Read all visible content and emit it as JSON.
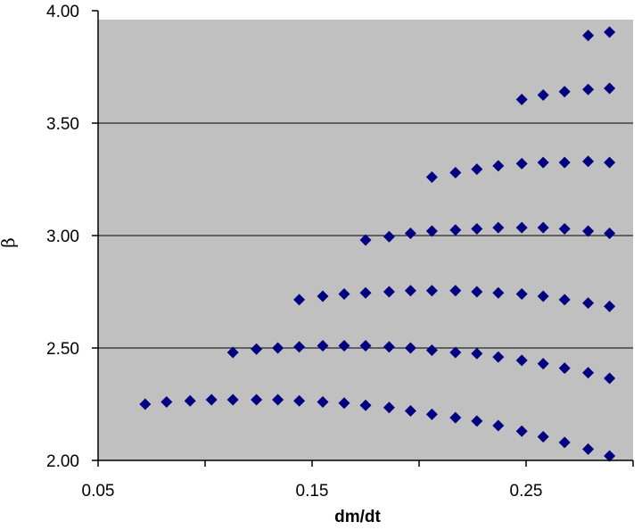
{
  "chart_data": {
    "type": "scatter",
    "title": "",
    "xlabel": "dm/dt",
    "ylabel": "β",
    "xlim": [
      0.05,
      0.3
    ],
    "ylim": [
      2.0,
      4.0
    ],
    "xticks": [
      0.05,
      0.15,
      0.25
    ],
    "xtick_labels": [
      "0.05",
      "0.15",
      "0.25"
    ],
    "yticks": [
      2.0,
      2.5,
      3.0,
      3.5,
      4.0
    ],
    "ytick_labels": [
      "2.00",
      "2.50",
      "3.00",
      "3.50",
      "4.00"
    ],
    "grid": "horizontal",
    "legend": "none",
    "plot_background": "#c0c0c0",
    "marker_color": "#000080",
    "marker": "diamond",
    "series": [
      {
        "x": [
          0.072,
          0.082,
          0.093,
          0.103,
          0.113,
          0.124,
          0.134,
          0.144,
          0.155,
          0.165,
          0.175,
          0.186,
          0.196,
          0.206,
          0.217,
          0.227,
          0.237,
          0.248,
          0.258,
          0.268,
          0.279,
          0.289
        ],
        "y": [
          2.25,
          2.26,
          2.265,
          2.27,
          2.27,
          2.27,
          2.27,
          2.265,
          2.26,
          2.255,
          2.245,
          2.235,
          2.22,
          2.205,
          2.19,
          2.175,
          2.155,
          2.13,
          2.105,
          2.08,
          2.05,
          2.02
        ]
      },
      {
        "x": [
          0.113,
          0.124,
          0.134,
          0.144,
          0.155,
          0.165,
          0.175,
          0.186,
          0.196,
          0.206,
          0.217,
          0.227,
          0.237,
          0.248,
          0.258,
          0.268,
          0.279,
          0.289
        ],
        "y": [
          2.48,
          2.495,
          2.5,
          2.505,
          2.51,
          2.51,
          2.51,
          2.505,
          2.5,
          2.49,
          2.48,
          2.475,
          2.46,
          2.445,
          2.43,
          2.41,
          2.39,
          2.365
        ]
      },
      {
        "x": [
          0.144,
          0.155,
          0.165,
          0.175,
          0.186,
          0.196,
          0.206,
          0.217,
          0.227,
          0.237,
          0.248,
          0.258,
          0.268,
          0.279,
          0.289
        ],
        "y": [
          2.715,
          2.73,
          2.74,
          2.745,
          2.75,
          2.755,
          2.755,
          2.755,
          2.75,
          2.745,
          2.74,
          2.73,
          2.715,
          2.7,
          2.685
        ]
      },
      {
        "x": [
          0.175,
          0.186,
          0.196,
          0.206,
          0.217,
          0.227,
          0.237,
          0.248,
          0.258,
          0.268,
          0.279,
          0.289
        ],
        "y": [
          2.98,
          2.995,
          3.01,
          3.02,
          3.025,
          3.03,
          3.035,
          3.035,
          3.035,
          3.03,
          3.02,
          3.01
        ]
      },
      {
        "x": [
          0.206,
          0.217,
          0.227,
          0.237,
          0.248,
          0.258,
          0.268,
          0.279,
          0.289
        ],
        "y": [
          3.26,
          3.28,
          3.295,
          3.31,
          3.32,
          3.325,
          3.325,
          3.33,
          3.325
        ]
      },
      {
        "x": [
          0.248,
          0.258,
          0.268,
          0.279,
          0.289
        ],
        "y": [
          3.605,
          3.625,
          3.64,
          3.65,
          3.655
        ]
      },
      {
        "x": [
          0.279,
          0.289
        ],
        "y": [
          3.89,
          3.905
        ]
      }
    ]
  }
}
